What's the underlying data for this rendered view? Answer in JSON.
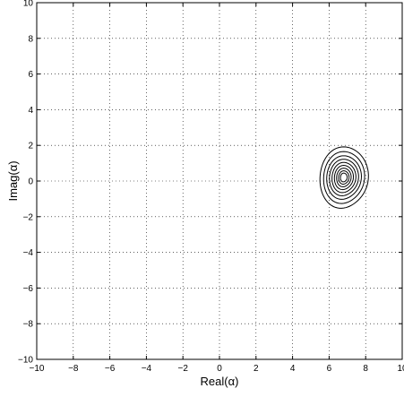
{
  "chart_data": {
    "type": "contour",
    "xlabel": "Real(α)",
    "ylabel": "Imag(α)",
    "xlim": [
      -10,
      10
    ],
    "ylim": [
      -10,
      10
    ],
    "xticks": [
      -10,
      -8,
      -6,
      -4,
      -2,
      0,
      2,
      4,
      6,
      8,
      10
    ],
    "yticks": [
      -10,
      -8,
      -6,
      -4,
      -2,
      0,
      2,
      4,
      6,
      8,
      10
    ],
    "xtick_labels": [
      "−10",
      "−8",
      "−6",
      "−4",
      "−2",
      "0",
      "2",
      "4",
      "6",
      "8",
      "10"
    ],
    "ytick_labels": [
      "−10",
      "−8",
      "−6",
      "−4",
      "−2",
      "0",
      "2",
      "4",
      "6",
      "8",
      "10"
    ],
    "grid": true,
    "grid_style": "dotted",
    "line_color": "#000000",
    "contours": [
      {
        "cx": 6.8,
        "cy": 0.2,
        "rx": 1.3,
        "ry": 1.75
      },
      {
        "cx": 6.8,
        "cy": 0.2,
        "rx": 1.1,
        "ry": 1.48
      },
      {
        "cx": 6.8,
        "cy": 0.2,
        "rx": 0.93,
        "ry": 1.24
      },
      {
        "cx": 6.8,
        "cy": 0.2,
        "rx": 0.78,
        "ry": 1.04
      },
      {
        "cx": 6.8,
        "cy": 0.2,
        "rx": 0.64,
        "ry": 0.86
      },
      {
        "cx": 6.8,
        "cy": 0.2,
        "rx": 0.51,
        "ry": 0.69
      },
      {
        "cx": 6.8,
        "cy": 0.2,
        "rx": 0.39,
        "ry": 0.53
      },
      {
        "cx": 6.8,
        "cy": 0.2,
        "rx": 0.28,
        "ry": 0.38
      },
      {
        "cx": 6.8,
        "cy": 0.2,
        "rx": 0.18,
        "ry": 0.25
      }
    ]
  }
}
